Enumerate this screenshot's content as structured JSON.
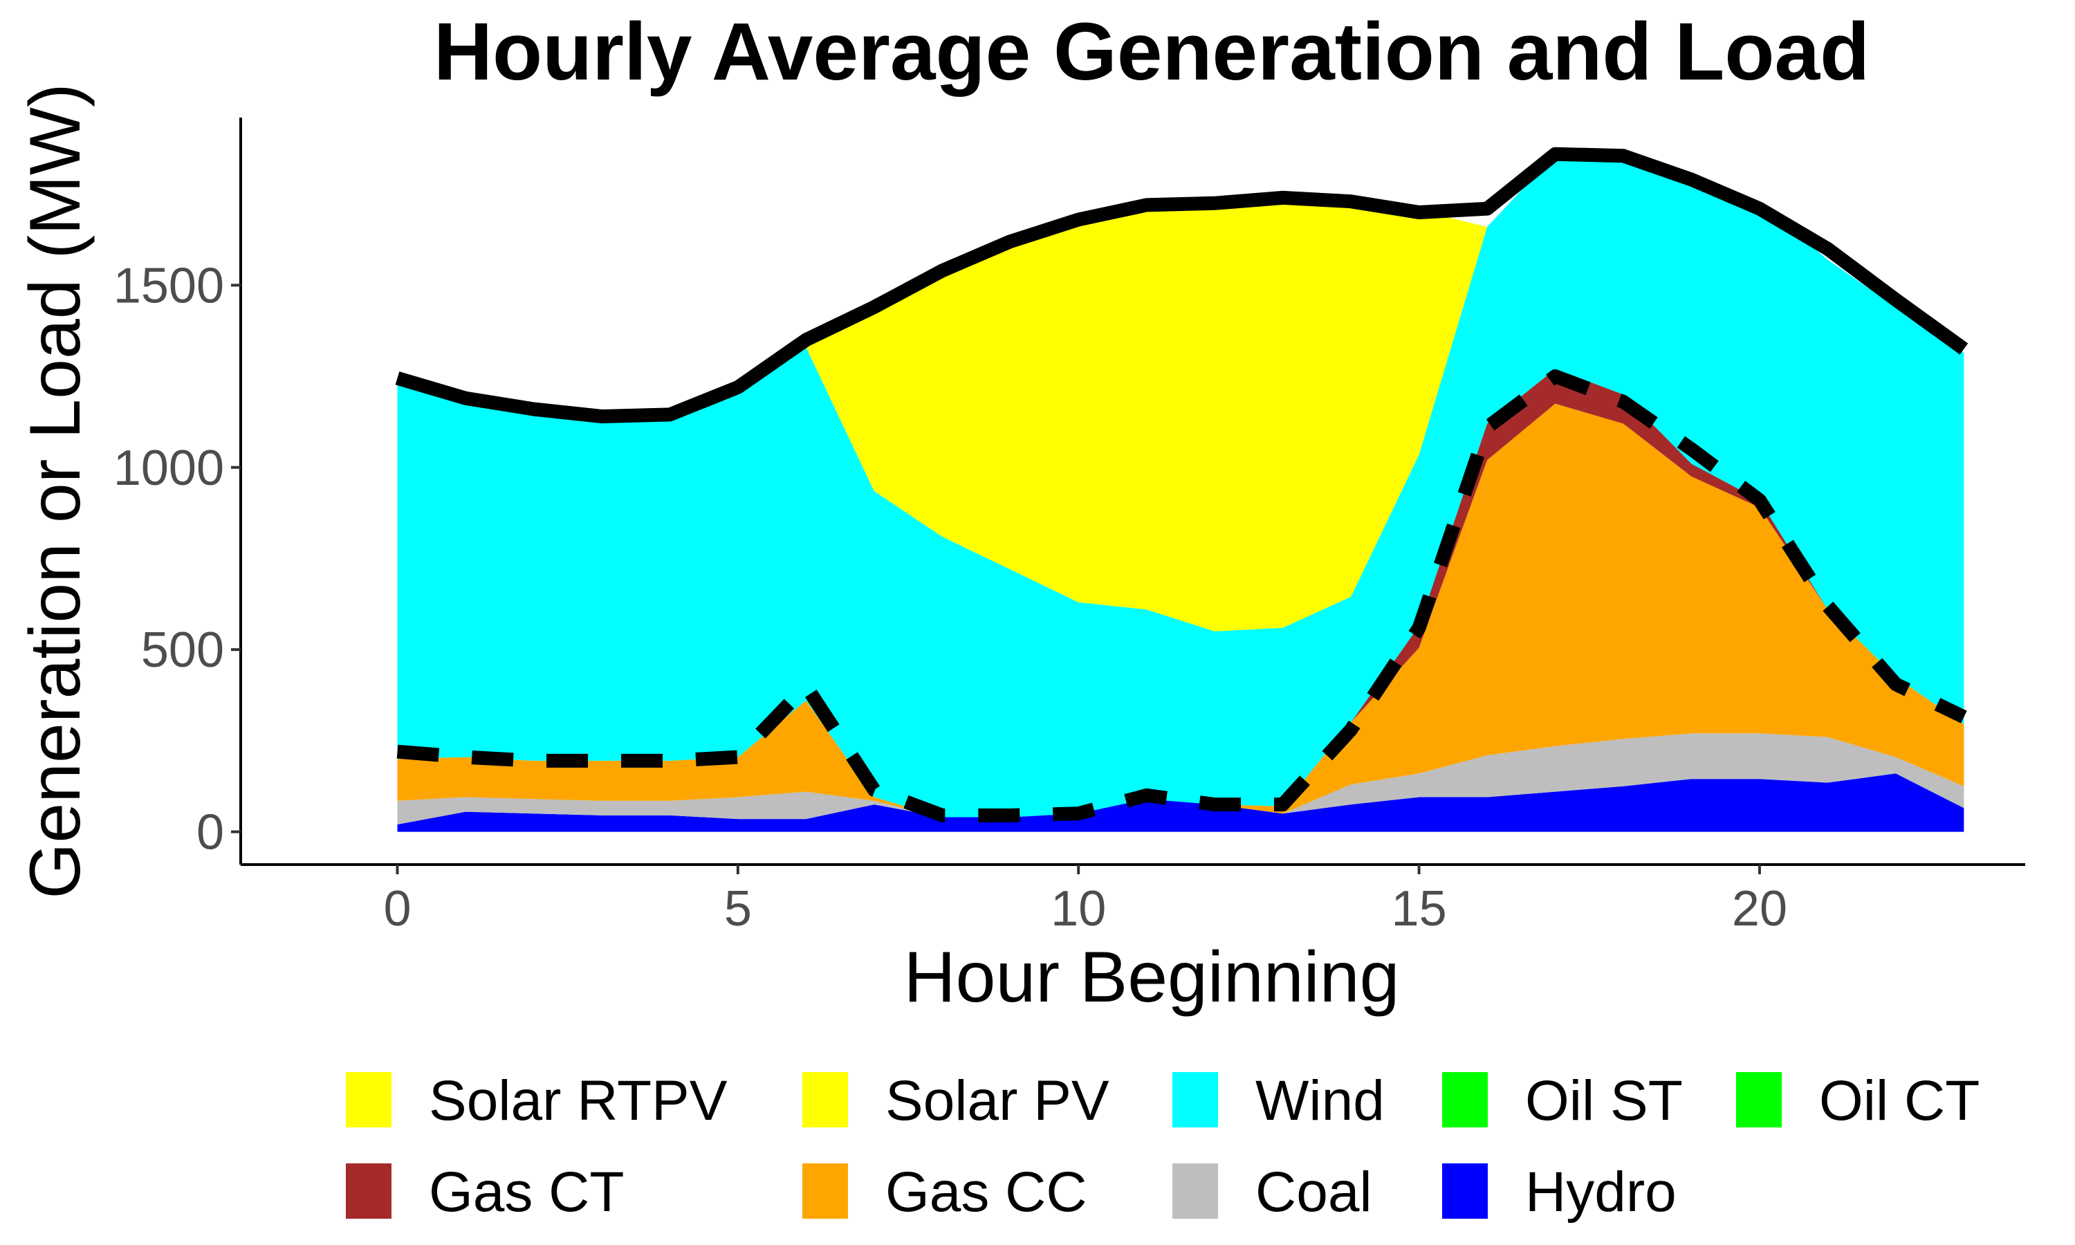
{
  "chart_data": {
    "type": "area",
    "title": "Hourly Average Generation and Load",
    "xlabel": "Hour Beginning",
    "ylabel": "Generation or Load (MW)",
    "xlim": [
      -2.3,
      23.9
    ],
    "ylim": [
      -90,
      1960
    ],
    "x_ticks": [
      0,
      5,
      10,
      15,
      20
    ],
    "y_ticks": [
      0,
      500,
      1000,
      1500
    ],
    "grid": false,
    "legend_position": "bottom",
    "x": [
      0,
      1,
      2,
      3,
      4,
      5,
      6,
      7,
      8,
      9,
      10,
      11,
      12,
      13,
      14,
      15,
      16,
      17,
      18,
      19,
      20,
      21,
      22,
      23
    ],
    "stack_series": [
      {
        "name": "Hydro",
        "color": "#0000ff",
        "values": [
          20,
          55,
          50,
          45,
          45,
          35,
          35,
          75,
          40,
          40,
          50,
          90,
          75,
          50,
          75,
          95,
          95,
          110,
          125,
          145,
          145,
          135,
          160,
          65
        ]
      },
      {
        "name": "Coal",
        "color": "#bebebe",
        "values": [
          65,
          40,
          40,
          40,
          40,
          60,
          75,
          10,
          0,
          0,
          0,
          0,
          0,
          0,
          55,
          65,
          115,
          125,
          130,
          125,
          125,
          125,
          45,
          60
        ]
      },
      {
        "name": "Gas CC",
        "color": "#ffa500",
        "values": [
          115,
          110,
          105,
          110,
          110,
          110,
          250,
          10,
          0,
          0,
          0,
          0,
          0,
          20,
          170,
          345,
          810,
          940,
          865,
          705,
          620,
          350,
          220,
          170
        ]
      },
      {
        "name": "Gas CT",
        "color": "#a52a2a",
        "values": [
          0,
          0,
          0,
          0,
          0,
          0,
          0,
          0,
          0,
          0,
          0,
          0,
          0,
          0,
          0,
          60,
          100,
          95,
          80,
          35,
          20,
          0,
          0,
          0
        ]
      },
      {
        "name": "Oil CT",
        "color": "#00ff00",
        "values": [
          0,
          0,
          0,
          0,
          0,
          0,
          0,
          0,
          0,
          0,
          0,
          0,
          0,
          0,
          0,
          0,
          0,
          0,
          0,
          0,
          0,
          0,
          0,
          0
        ]
      },
      {
        "name": "Oil ST",
        "color": "#00ff00",
        "values": [
          0,
          0,
          0,
          0,
          0,
          0,
          0,
          0,
          0,
          0,
          0,
          0,
          0,
          0,
          0,
          0,
          0,
          0,
          0,
          0,
          0,
          0,
          0,
          0
        ]
      },
      {
        "name": "Wind",
        "color": "#00ffff",
        "values": [
          1040,
          980,
          950,
          945,
          955,
          1010,
          970,
          840,
          770,
          680,
          580,
          520,
          475,
          490,
          345,
          470,
          540,
          590,
          670,
          765,
          820,
          960,
          1015,
          1020
        ]
      },
      {
        "name": "Solar PV",
        "color": "#ffff00",
        "values": [
          0,
          0,
          0,
          0,
          0,
          0,
          0,
          490,
          730,
          900,
          1030,
          1100,
          1180,
          1170,
          1080,
          670,
          0,
          0,
          0,
          0,
          0,
          0,
          0,
          0
        ]
      },
      {
        "name": "Solar RTPV",
        "color": "#ffff00",
        "values": [
          0,
          0,
          0,
          0,
          0,
          0,
          0,
          0,
          0,
          0,
          0,
          0,
          0,
          0,
          0,
          0,
          0,
          0,
          0,
          0,
          0,
          0,
          0,
          0
        ]
      }
    ],
    "lines": [
      {
        "label": "solid",
        "style": "solid",
        "color": "#000000",
        "values": [
          1245,
          1190,
          1160,
          1140,
          1145,
          1220,
          1350,
          1440,
          1540,
          1620,
          1680,
          1720,
          1725,
          1740,
          1730,
          1700,
          1710,
          1860,
          1855,
          1790,
          1710,
          1600,
          1460,
          1325
        ]
      },
      {
        "label": "dashed",
        "style": "dashed",
        "color": "#000000",
        "values": [
          220,
          205,
          195,
          195,
          195,
          205,
          400,
          115,
          45,
          45,
          50,
          100,
          75,
          75,
          280,
          560,
          1110,
          1250,
          1180,
          1050,
          910,
          620,
          405,
          315
        ]
      }
    ],
    "legend": [
      {
        "name": "Solar RTPV",
        "color": "#ffff00"
      },
      {
        "name": "Solar PV",
        "color": "#ffff00"
      },
      {
        "name": "Wind",
        "color": "#00ffff"
      },
      {
        "name": "Oil ST",
        "color": "#00ff00"
      },
      {
        "name": "Oil CT",
        "color": "#00ff00"
      },
      {
        "name": "Gas CT",
        "color": "#a52a2a"
      },
      {
        "name": "Gas CC",
        "color": "#ffa500"
      },
      {
        "name": "Coal",
        "color": "#bebebe"
      },
      {
        "name": "Hydro",
        "color": "#0000ff"
      }
    ]
  }
}
